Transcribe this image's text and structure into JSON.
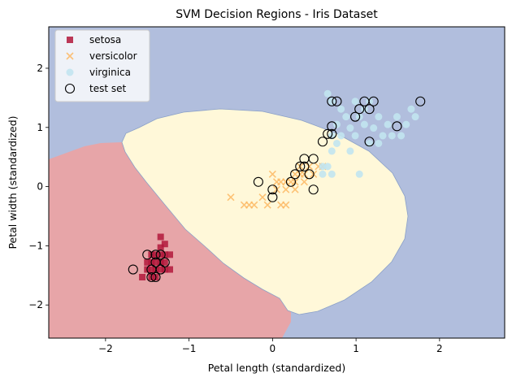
{
  "chart_data": {
    "type": "scatter",
    "title": "SVM Decision Regions - Iris Dataset",
    "xlabel": "Petal length (standardized)",
    "ylabel": "Petal width (standardized)",
    "xlim": [
      -2.68,
      2.78
    ],
    "ylim": [
      -2.56,
      2.7
    ],
    "xticks": [
      -2,
      -1,
      0,
      1,
      2
    ],
    "yticks": [
      -2,
      -1,
      0,
      1,
      2
    ],
    "grid": false,
    "legend_position": "upper-left",
    "regions": [
      {
        "class": "virginica",
        "color": "#b1bedd"
      },
      {
        "class": "setosa",
        "color": "#e7a5a8"
      },
      {
        "class": "versicolor",
        "color": "#fff8d9"
      }
    ],
    "series": [
      {
        "name": "setosa",
        "marker": "square",
        "color": "#b2183b",
        "points": [
          [
            -1.56,
            -1.53
          ],
          [
            -1.5,
            -1.4
          ],
          [
            -1.45,
            -1.4
          ],
          [
            -1.4,
            -1.4
          ],
          [
            -1.34,
            -1.4
          ],
          [
            -1.29,
            -1.4
          ],
          [
            -1.23,
            -1.4
          ],
          [
            -1.5,
            -1.28
          ],
          [
            -1.45,
            -1.28
          ],
          [
            -1.4,
            -1.28
          ],
          [
            -1.34,
            -1.28
          ],
          [
            -1.29,
            -1.28
          ],
          [
            -1.45,
            -1.15
          ],
          [
            -1.4,
            -1.15
          ],
          [
            -1.34,
            -1.15
          ],
          [
            -1.29,
            -1.15
          ],
          [
            -1.23,
            -1.15
          ],
          [
            -1.34,
            -1.03
          ],
          [
            -1.29,
            -0.97
          ],
          [
            -1.34,
            -0.85
          ],
          [
            -1.45,
            -1.53
          ],
          [
            -1.4,
            -1.53
          ]
        ]
      },
      {
        "name": "versicolor",
        "marker": "x",
        "color": "#fdb863",
        "points": [
          [
            -0.5,
            -0.18
          ],
          [
            -0.34,
            -0.31
          ],
          [
            -0.28,
            -0.31
          ],
          [
            -0.22,
            -0.31
          ],
          [
            -0.12,
            -0.18
          ],
          [
            -0.06,
            -0.31
          ],
          [
            0.05,
            -0.05
          ],
          [
            0.05,
            0.08
          ],
          [
            0.1,
            0.08
          ],
          [
            0.1,
            -0.31
          ],
          [
            0.16,
            -0.31
          ],
          [
            0.16,
            -0.05
          ],
          [
            0.16,
            0.08
          ],
          [
            0.22,
            0.08
          ],
          [
            0.27,
            0.08
          ],
          [
            0.27,
            -0.05
          ],
          [
            0.33,
            0.21
          ],
          [
            0.38,
            0.08
          ],
          [
            0.38,
            0.21
          ],
          [
            0.44,
            0.34
          ],
          [
            0.49,
            0.21
          ],
          [
            0.55,
            0.34
          ],
          [
            0.6,
            0.34
          ],
          [
            0.0,
            0.21
          ],
          [
            0.33,
            0.34
          ],
          [
            0.27,
            0.21
          ]
        ]
      },
      {
        "name": "virginica",
        "marker": "circle",
        "color": "#c2e4ef",
        "points": [
          [
            0.6,
            0.21
          ],
          [
            0.66,
            0.34
          ],
          [
            0.71,
            0.21
          ],
          [
            0.71,
            0.6
          ],
          [
            0.77,
            0.73
          ],
          [
            0.77,
            1.05
          ],
          [
            0.82,
            0.86
          ],
          [
            0.82,
            1.31
          ],
          [
            0.88,
            1.18
          ],
          [
            0.93,
            0.99
          ],
          [
            0.93,
            0.6
          ],
          [
            0.99,
            0.86
          ],
          [
            0.99,
            1.44
          ],
          [
            1.04,
            1.18
          ],
          [
            1.04,
            0.21
          ],
          [
            1.1,
            1.31
          ],
          [
            1.1,
            1.05
          ],
          [
            1.16,
            0.73
          ],
          [
            1.16,
            1.44
          ],
          [
            1.21,
            0.99
          ],
          [
            1.27,
            1.18
          ],
          [
            1.27,
            0.73
          ],
          [
            1.32,
            0.86
          ],
          [
            1.38,
            1.05
          ],
          [
            1.43,
            0.86
          ],
          [
            1.49,
            1.18
          ],
          [
            1.54,
            0.86
          ],
          [
            1.6,
            1.05
          ],
          [
            1.66,
            1.31
          ],
          [
            1.71,
            1.18
          ],
          [
            0.66,
            1.57
          ],
          [
            0.71,
            1.44
          ],
          [
            0.71,
            0.86
          ],
          [
            0.6,
            0.34
          ]
        ]
      },
      {
        "name": "test set",
        "marker": "circle-open",
        "color": "#000000",
        "points": [
          [
            -1.67,
            -1.4
          ],
          [
            -1.5,
            -1.15
          ],
          [
            -1.45,
            -1.53
          ],
          [
            -1.45,
            -1.4
          ],
          [
            -1.4,
            -1.53
          ],
          [
            -1.4,
            -1.28
          ],
          [
            -1.34,
            -1.15
          ],
          [
            -1.34,
            -1.4
          ],
          [
            -1.29,
            -1.28
          ],
          [
            -1.4,
            -1.15
          ],
          [
            -0.17,
            0.08
          ],
          [
            0.0,
            -0.05
          ],
          [
            0.0,
            -0.18
          ],
          [
            0.22,
            0.08
          ],
          [
            0.27,
            0.21
          ],
          [
            0.33,
            0.34
          ],
          [
            0.38,
            0.34
          ],
          [
            0.38,
            0.47
          ],
          [
            0.44,
            0.21
          ],
          [
            0.49,
            0.47
          ],
          [
            0.49,
            -0.05
          ],
          [
            0.6,
            0.76
          ],
          [
            0.66,
            0.89
          ],
          [
            0.71,
            0.89
          ],
          [
            0.71,
            1.02
          ],
          [
            0.71,
            1.44
          ],
          [
            0.77,
            1.44
          ],
          [
            0.99,
            1.18
          ],
          [
            1.04,
            1.31
          ],
          [
            1.1,
            1.44
          ],
          [
            1.16,
            1.31
          ],
          [
            1.21,
            1.44
          ],
          [
            1.16,
            0.76
          ],
          [
            1.49,
            1.02
          ],
          [
            1.77,
            1.44
          ]
        ]
      }
    ]
  }
}
